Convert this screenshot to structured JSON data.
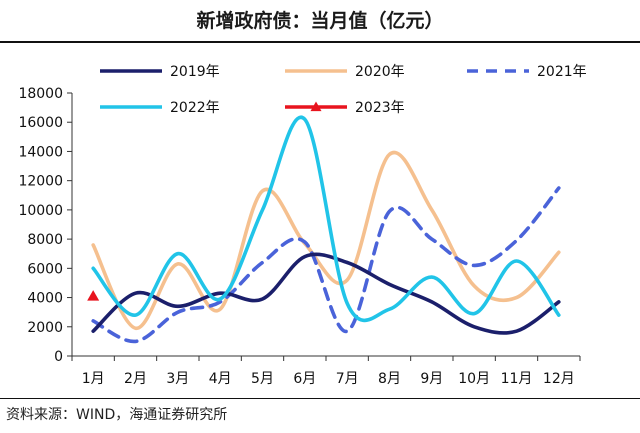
{
  "page": {
    "title": "新增政府债：当月值（亿元）",
    "source": "资料来源：WIND，海通证券研究所"
  },
  "chart_data": {
    "type": "line",
    "title": "新增政府债：当月值（亿元）",
    "xlabel": "",
    "ylabel": "",
    "categories": [
      "1月",
      "2月",
      "3月",
      "4月",
      "5月",
      "6月",
      "7月",
      "8月",
      "9月",
      "10月",
      "11月",
      "12月"
    ],
    "ylim": [
      0,
      18000
    ],
    "yticks": [
      0,
      2000,
      4000,
      6000,
      8000,
      10000,
      12000,
      14000,
      16000,
      18000
    ],
    "grid": false,
    "legend_position": "top",
    "series": [
      {
        "name": "2019年",
        "color": "#1b1f6b",
        "style": "solid",
        "marker": "none",
        "values": [
          1700,
          4300,
          3400,
          4300,
          3900,
          6800,
          6400,
          4900,
          3700,
          2000,
          1700,
          3700
        ]
      },
      {
        "name": "2020年",
        "color": "#f5c08f",
        "style": "solid",
        "marker": "none",
        "values": [
          7600,
          1900,
          6300,
          3200,
          11300,
          7700,
          5200,
          13800,
          10000,
          4800,
          4000,
          7100
        ]
      },
      {
        "name": "2021年",
        "color": "#4a63d9",
        "style": "dashed",
        "marker": "none",
        "values": [
          2400,
          1000,
          3000,
          3700,
          6400,
          7800,
          1700,
          9900,
          8000,
          6200,
          7900,
          11500
        ]
      },
      {
        "name": "2022年",
        "color": "#21c4e8",
        "style": "solid",
        "marker": "none",
        "values": [
          6000,
          2800,
          7000,
          3900,
          10000,
          16200,
          3600,
          3200,
          5400,
          2900,
          6500,
          2800
        ]
      },
      {
        "name": "2023年",
        "color": "#e8141e",
        "style": "solid",
        "marker": "triangle",
        "values": [
          4100,
          null,
          null,
          null,
          null,
          null,
          null,
          null,
          null,
          null,
          null,
          null
        ]
      }
    ]
  }
}
